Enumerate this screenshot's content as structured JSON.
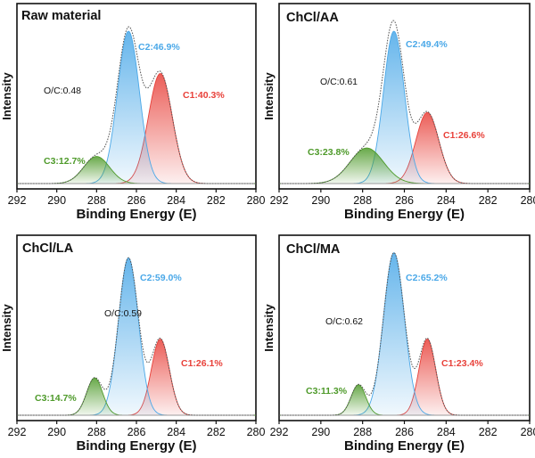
{
  "chart_data": [
    {
      "type": "area",
      "title": "Raw material",
      "xlabel": "Binding Energy (E)",
      "ylabel": "Intensity",
      "xlim": [
        292,
        280
      ],
      "xticks": [
        292,
        290,
        288,
        286,
        284,
        282,
        280
      ],
      "oc_label": "O/C:0.48",
      "series": [
        {
          "name": "C1",
          "label": "C1:40.3%",
          "center": 284.8,
          "height": 0.65,
          "sigma": 0.6,
          "color": "#e8413a"
        },
        {
          "name": "C2",
          "label": "C2:46.9%",
          "center": 286.4,
          "height": 0.9,
          "sigma": 0.55,
          "color": "#4aa8e8"
        },
        {
          "name": "C3",
          "label": "C3:12.7%",
          "center": 288.0,
          "height": 0.16,
          "sigma": 0.65,
          "color": "#4e9a2a"
        }
      ]
    },
    {
      "type": "area",
      "title": "ChCl/AA",
      "xlabel": "Binding Energy (E)",
      "ylabel": "Intensity",
      "xlim": [
        292,
        280
      ],
      "xticks": [
        292,
        290,
        288,
        286,
        284,
        282,
        280
      ],
      "oc_label": "O/C:0.61",
      "series": [
        {
          "name": "C1",
          "label": "C1:26.6%",
          "center": 284.9,
          "height": 0.42,
          "sigma": 0.55,
          "color": "#e8413a"
        },
        {
          "name": "C2",
          "label": "C2:49.4%",
          "center": 286.5,
          "height": 0.9,
          "sigma": 0.5,
          "color": "#4aa8e8"
        },
        {
          "name": "C3",
          "label": "C3:23.8%",
          "center": 287.8,
          "height": 0.21,
          "sigma": 0.8,
          "color": "#4e9a2a"
        }
      ]
    },
    {
      "type": "area",
      "title": "ChCl/LA",
      "xlabel": "Binding Energy (E)",
      "ylabel": "Intensity",
      "xlim": [
        292,
        280
      ],
      "xticks": [
        292,
        290,
        288,
        286,
        284,
        282,
        280
      ],
      "oc_label": "O/C:0.59",
      "series": [
        {
          "name": "C1",
          "label": "C1:26.1%",
          "center": 284.8,
          "height": 0.45,
          "sigma": 0.45,
          "color": "#e8413a"
        },
        {
          "name": "C2",
          "label": "C2:59.0%",
          "center": 286.4,
          "height": 0.93,
          "sigma": 0.5,
          "color": "#4aa8e8"
        },
        {
          "name": "C3",
          "label": "C3:14.7%",
          "center": 288.1,
          "height": 0.22,
          "sigma": 0.4,
          "color": "#4e9a2a"
        }
      ]
    },
    {
      "type": "area",
      "title": "ChCl/MA",
      "xlabel": "Binding Energy (E)",
      "ylabel": "Intensity",
      "xlim": [
        292,
        280
      ],
      "xticks": [
        292,
        290,
        288,
        286,
        284,
        282,
        280
      ],
      "oc_label": "O/C:0.62",
      "series": [
        {
          "name": "C1",
          "label": "C1:23.4%",
          "center": 284.9,
          "height": 0.45,
          "sigma": 0.4,
          "color": "#e8413a"
        },
        {
          "name": "C2",
          "label": "C2:65.2%",
          "center": 286.5,
          "height": 0.96,
          "sigma": 0.5,
          "color": "#4aa8e8"
        },
        {
          "name": "C3",
          "label": "C3:11.3%",
          "center": 288.2,
          "height": 0.18,
          "sigma": 0.35,
          "color": "#4e9a2a"
        }
      ]
    }
  ]
}
